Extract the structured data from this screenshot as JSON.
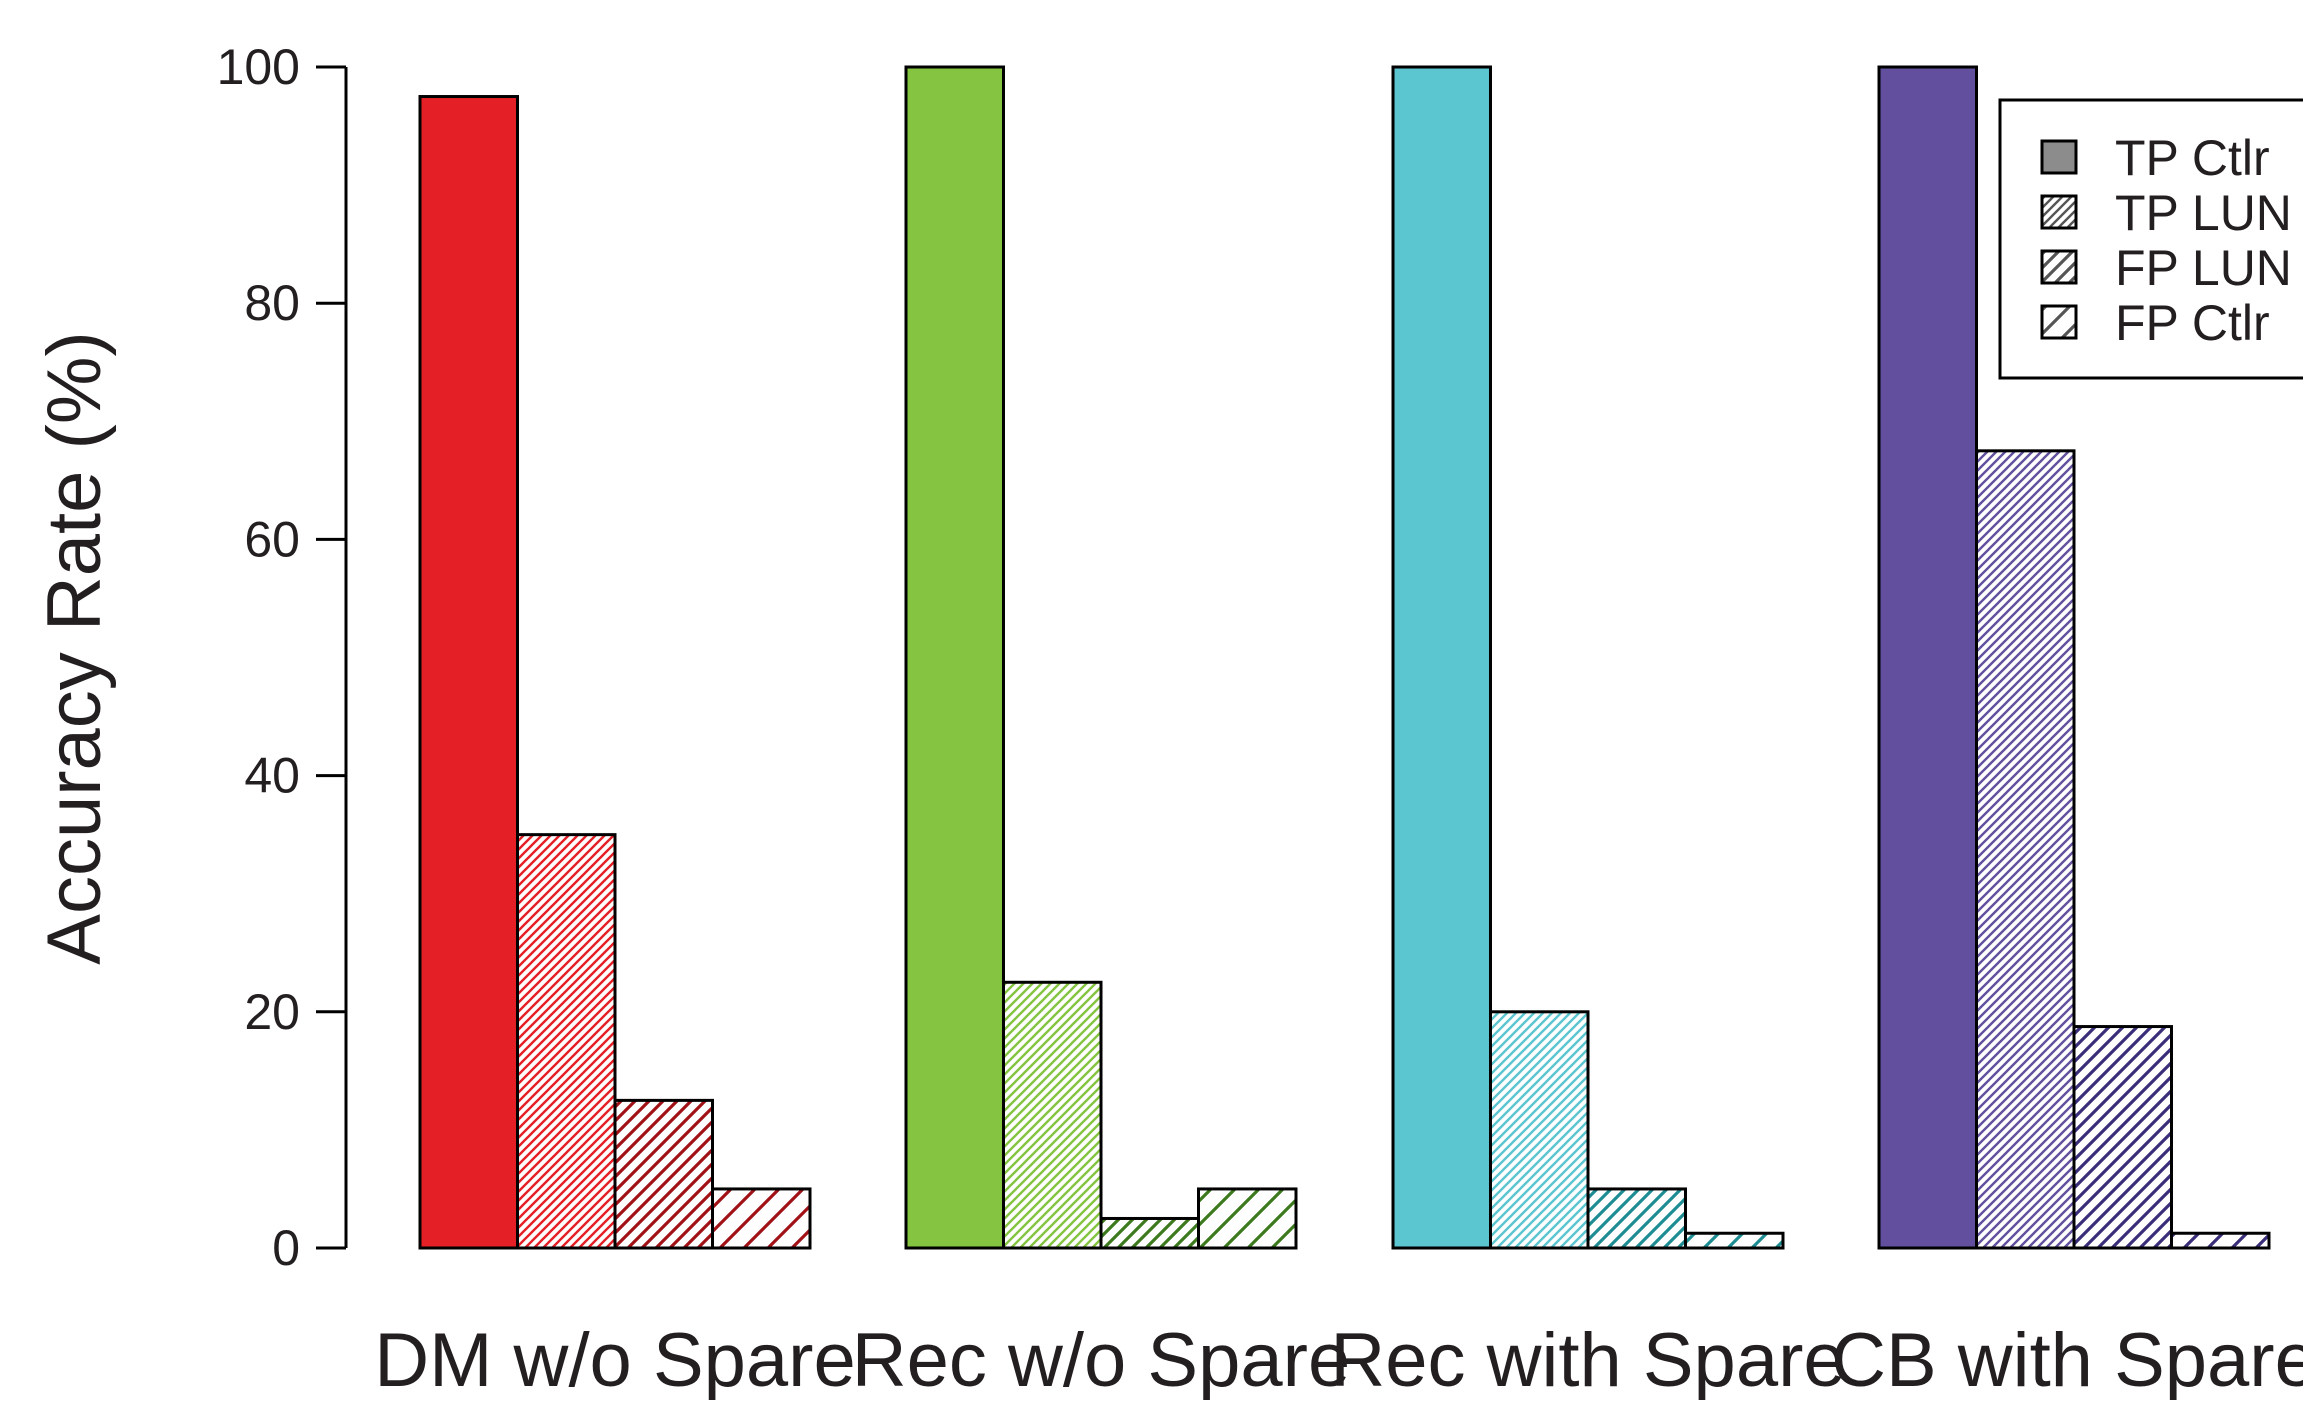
{
  "chart_data": {
    "type": "bar",
    "title": "",
    "xlabel": "",
    "ylabel": "Accuracy Rate (%)",
    "ylim": [
      0,
      100
    ],
    "yticks": [
      0,
      20,
      40,
      60,
      80,
      100
    ],
    "grid": false,
    "legend_position": "top-right",
    "categories": [
      "DM w/o Spare",
      "Rec w/o Spare",
      "Rec with Spare",
      "CB with Spare"
    ],
    "category_colors": {
      "DM w/o Spare": "#e41f26",
      "Rec w/o Spare": "#85c441",
      "Rec with Spare": "#5bc5d0",
      "CB with Spare": "#62509f"
    },
    "dark_colors": {
      "DM w/o Spare": "#a11217",
      "Rec w/o Spare": "#3d7a1e",
      "Rec with Spare": "#1e8c93",
      "CB with Spare": "#3a2d7a"
    },
    "series": [
      {
        "name": "TP Ctlr",
        "pattern": "solid",
        "values": [
          97.5,
          100,
          100,
          100
        ]
      },
      {
        "name": "TP LUN",
        "pattern": "dense-hatch",
        "values": [
          35,
          22.5,
          20,
          67.5
        ]
      },
      {
        "name": "FP LUN",
        "pattern": "medium-hatch",
        "values": [
          12.5,
          2.5,
          5,
          18.75
        ]
      },
      {
        "name": "FP Ctlr",
        "pattern": "sparse-hatch",
        "values": [
          5,
          5,
          1.25,
          1.25
        ]
      }
    ]
  }
}
